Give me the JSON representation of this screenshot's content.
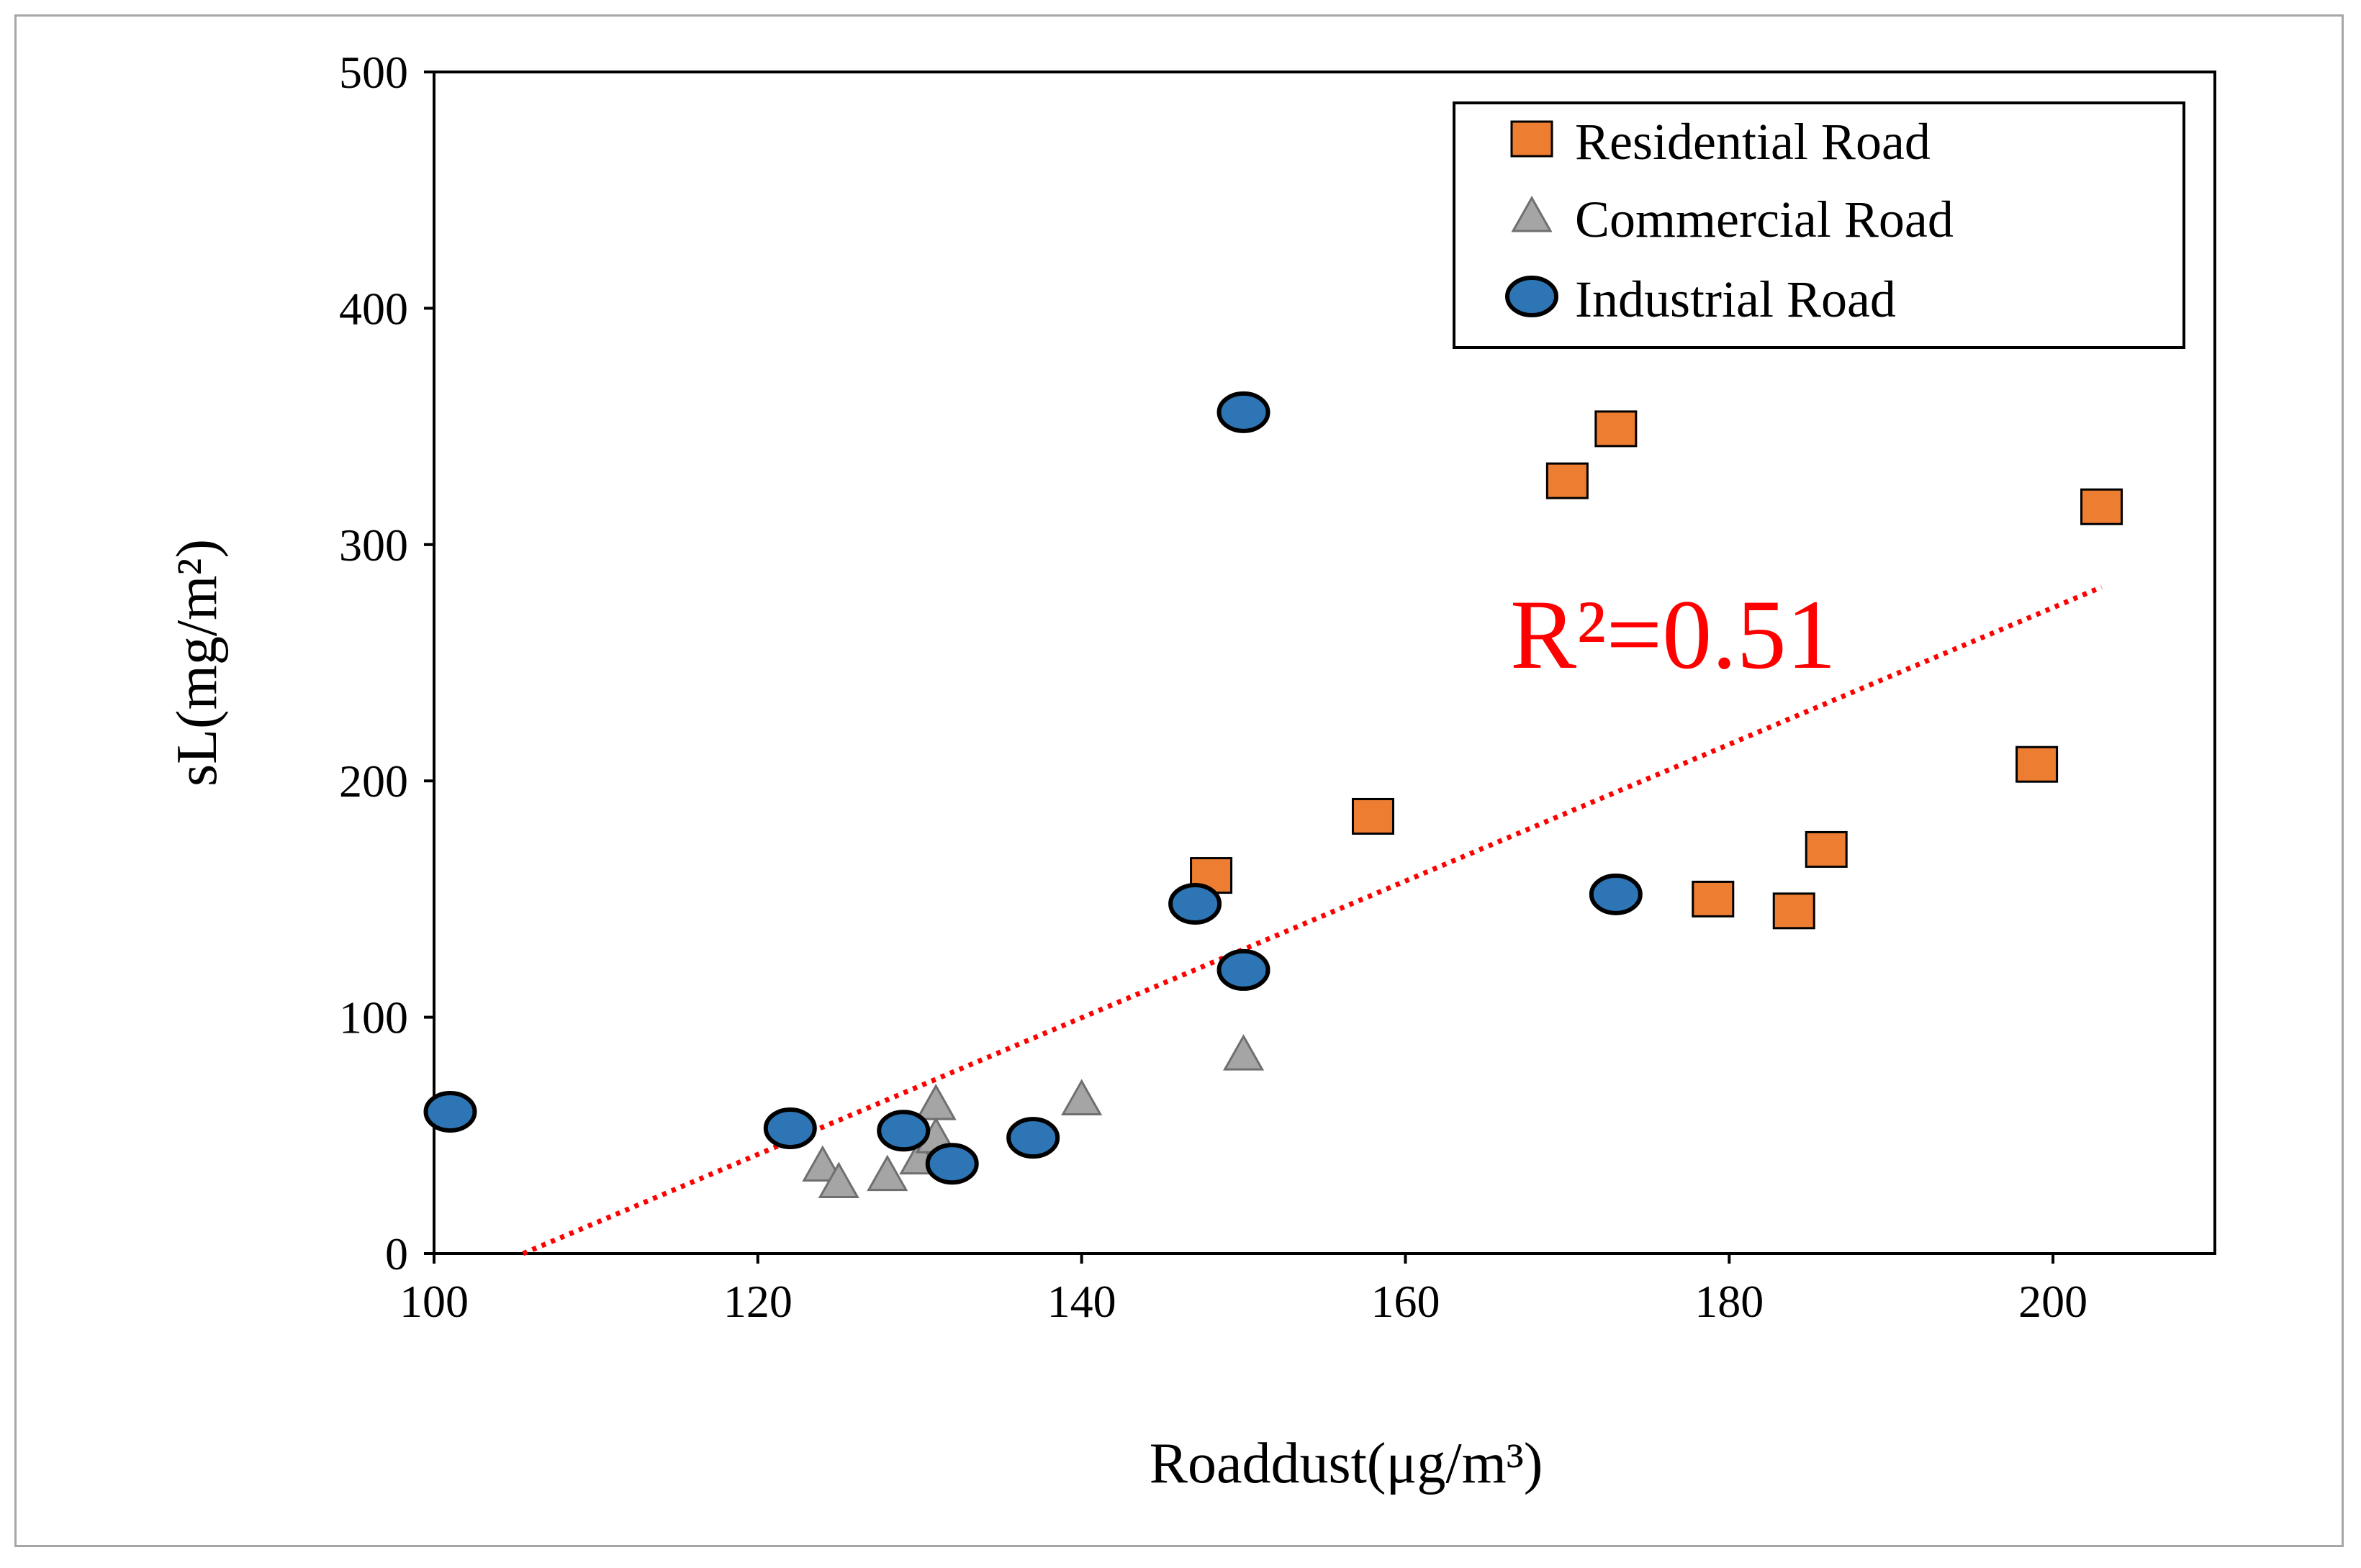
{
  "chart_data": {
    "type": "scatter",
    "title": "",
    "xlabel": "Roaddust(μg/m³)",
    "ylabel": "sL(mg/m²)",
    "xlim": [
      100,
      210
    ],
    "ylim": [
      0,
      500
    ],
    "x_ticks": [
      100,
      120,
      140,
      160,
      180,
      200
    ],
    "y_ticks": [
      0,
      100,
      200,
      300,
      400,
      500
    ],
    "grid": false,
    "legend_position": "top-right",
    "series": [
      {
        "name": "Residential Road",
        "marker": "square",
        "color": "#ed7d31",
        "points": [
          {
            "x": 148,
            "y": 160
          },
          {
            "x": 158,
            "y": 185
          },
          {
            "x": 170,
            "y": 327
          },
          {
            "x": 173,
            "y": 349
          },
          {
            "x": 179,
            "y": 150
          },
          {
            "x": 184,
            "y": 145
          },
          {
            "x": 186,
            "y": 171
          },
          {
            "x": 199,
            "y": 207
          },
          {
            "x": 203,
            "y": 316
          }
        ]
      },
      {
        "name": "Commercial Road",
        "marker": "triangle",
        "color": "#a5a5a5",
        "points": [
          {
            "x": 124,
            "y": 37
          },
          {
            "x": 125,
            "y": 30
          },
          {
            "x": 128,
            "y": 33
          },
          {
            "x": 130,
            "y": 40
          },
          {
            "x": 131,
            "y": 49
          },
          {
            "x": 131,
            "y": 63
          },
          {
            "x": 140,
            "y": 65
          },
          {
            "x": 150,
            "y": 84
          }
        ]
      },
      {
        "name": "Industrial Road",
        "marker": "circle",
        "color": "#2e75b6",
        "points": [
          {
            "x": 101,
            "y": 60
          },
          {
            "x": 122,
            "y": 53
          },
          {
            "x": 129,
            "y": 52
          },
          {
            "x": 132,
            "y": 38
          },
          {
            "x": 137,
            "y": 49
          },
          {
            "x": 147,
            "y": 148
          },
          {
            "x": 150,
            "y": 120
          },
          {
            "x": 150,
            "y": 356
          },
          {
            "x": 173,
            "y": 152
          }
        ]
      }
    ],
    "trendline": {
      "type": "linear",
      "style": "dotted",
      "color": "#ff0000",
      "from": {
        "x": 105.5,
        "y": 0
      },
      "to": {
        "x": 203,
        "y": 282
      }
    },
    "annotation": {
      "text": "R²=0.51",
      "color": "#ff0000"
    }
  }
}
